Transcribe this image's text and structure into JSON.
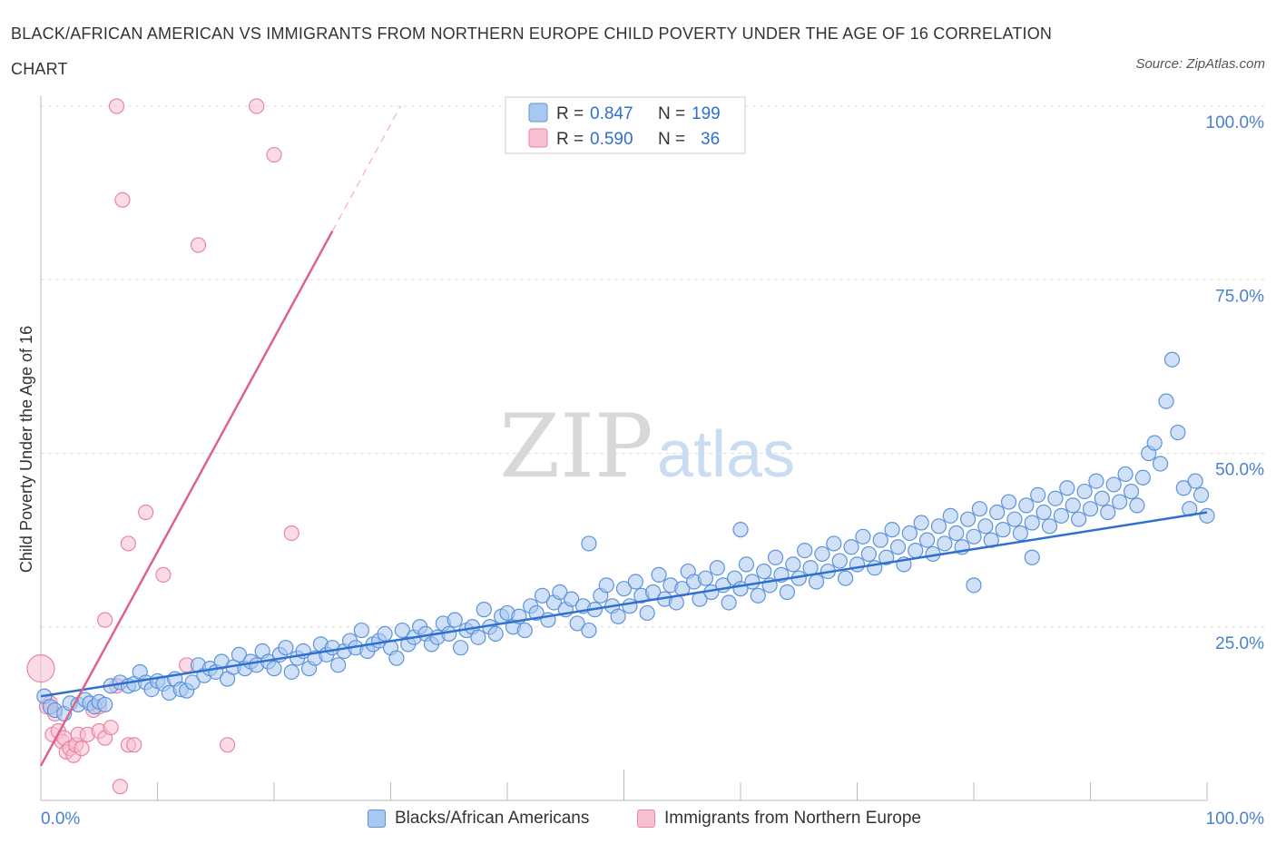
{
  "header": {
    "title": "BLACK/AFRICAN AMERICAN VS IMMIGRANTS FROM NORTHERN EUROPE CHILD POVERTY UNDER THE AGE OF 16 CORRELATION CHART",
    "source": "Source: ZipAtlas.com"
  },
  "colors": {
    "blue_fill": "#a9c8f0",
    "blue_stroke": "#5d93dc",
    "blue_line": "#2f6fd0",
    "pink_fill": "#f8c0d1",
    "pink_stroke": "#e8869f",
    "pink_line": "#e0628c",
    "tick_label": "#4a7fd0",
    "grid": "#dddddd"
  },
  "legend_box": {
    "row1": {
      "r_label": "R =",
      "r_value": "0.847",
      "n_label": "N =",
      "n_value": "199"
    },
    "row2": {
      "r_label": "R =",
      "r_value": "0.590",
      "n_label": "N =",
      "n_value": "36"
    }
  },
  "watermark": {
    "zip": "ZIP",
    "atlas": "atlas"
  },
  "chart_data": {
    "type": "scatter",
    "title": "BLACK/AFRICAN AMERICAN VS IMMIGRANTS FROM NORTHERN EUROPE CHILD POVERTY UNDER THE AGE OF 16 CORRELATION CHART",
    "xlabel": "",
    "ylabel": "Child Poverty Under the Age of 16",
    "xlim": [
      0,
      100
    ],
    "ylim": [
      0,
      100
    ],
    "x_tick_labels": [
      "0.0%",
      "100.0%"
    ],
    "y_tick_labels": [
      "25.0%",
      "50.0%",
      "75.0%",
      "100.0%"
    ],
    "y_ticks": [
      25,
      50,
      75,
      100
    ],
    "grid": true,
    "legend_position": "bottom",
    "series": [
      {
        "name": "Blacks/African Americans",
        "color": "#5d93dc",
        "R": 0.847,
        "N": 199,
        "trend": {
          "x": [
            0,
            100
          ],
          "y": [
            15.0,
            41.5
          ]
        },
        "points": [
          [
            0.3,
            15.0
          ],
          [
            0.8,
            13.5
          ],
          [
            1.2,
            13.0
          ],
          [
            2.0,
            12.5
          ],
          [
            2.5,
            14.0
          ],
          [
            3.2,
            13.8
          ],
          [
            3.8,
            14.5
          ],
          [
            4.2,
            14.0
          ],
          [
            4.6,
            13.5
          ],
          [
            5.0,
            14.2
          ],
          [
            5.5,
            13.8
          ],
          [
            6.0,
            16.5
          ],
          [
            6.8,
            17.0
          ],
          [
            7.5,
            16.5
          ],
          [
            8.0,
            16.8
          ],
          [
            8.5,
            18.5
          ],
          [
            9.0,
            17.0
          ],
          [
            9.5,
            16.0
          ],
          [
            10.0,
            17.2
          ],
          [
            10.5,
            16.8
          ],
          [
            11.0,
            15.5
          ],
          [
            11.5,
            17.5
          ],
          [
            12.0,
            16.0
          ],
          [
            12.5,
            15.8
          ],
          [
            13.0,
            17.0
          ],
          [
            13.5,
            19.5
          ],
          [
            14.0,
            18.0
          ],
          [
            14.5,
            19.0
          ],
          [
            15.0,
            18.5
          ],
          [
            15.5,
            20.0
          ],
          [
            16.0,
            17.5
          ],
          [
            16.5,
            19.2
          ],
          [
            17.0,
            21.0
          ],
          [
            17.5,
            19.0
          ],
          [
            18.0,
            20.0
          ],
          [
            18.5,
            19.5
          ],
          [
            19.0,
            21.5
          ],
          [
            19.5,
            20.0
          ],
          [
            20.0,
            19.0
          ],
          [
            20.5,
            21.0
          ],
          [
            21.0,
            22.0
          ],
          [
            21.5,
            18.5
          ],
          [
            22.0,
            20.5
          ],
          [
            22.5,
            21.5
          ],
          [
            23.0,
            19.0
          ],
          [
            23.5,
            20.5
          ],
          [
            24.0,
            22.5
          ],
          [
            24.5,
            21.0
          ],
          [
            25.0,
            22.0
          ],
          [
            25.5,
            19.5
          ],
          [
            26.0,
            21.5
          ],
          [
            26.5,
            23.0
          ],
          [
            27.0,
            22.0
          ],
          [
            27.5,
            24.5
          ],
          [
            28.0,
            21.5
          ],
          [
            28.5,
            22.5
          ],
          [
            29.0,
            23.0
          ],
          [
            29.5,
            24.0
          ],
          [
            30.0,
            22.0
          ],
          [
            30.5,
            20.5
          ],
          [
            31.0,
            24.5
          ],
          [
            31.5,
            22.5
          ],
          [
            32.0,
            23.5
          ],
          [
            32.5,
            25.0
          ],
          [
            33.0,
            24.0
          ],
          [
            33.5,
            22.5
          ],
          [
            34.0,
            23.5
          ],
          [
            34.5,
            25.5
          ],
          [
            35.0,
            24.0
          ],
          [
            35.5,
            26.0
          ],
          [
            36.0,
            22.0
          ],
          [
            36.5,
            24.5
          ],
          [
            37.0,
            25.0
          ],
          [
            37.5,
            23.5
          ],
          [
            38.0,
            27.5
          ],
          [
            38.5,
            25.0
          ],
          [
            39.0,
            24.0
          ],
          [
            39.5,
            26.5
          ],
          [
            40.0,
            27.0
          ],
          [
            40.5,
            25.0
          ],
          [
            41.0,
            26.5
          ],
          [
            41.5,
            24.5
          ],
          [
            42.0,
            28.0
          ],
          [
            42.5,
            27.0
          ],
          [
            43.0,
            29.5
          ],
          [
            43.5,
            26.0
          ],
          [
            44.0,
            28.5
          ],
          [
            44.5,
            30.0
          ],
          [
            45.0,
            27.5
          ],
          [
            45.5,
            29.0
          ],
          [
            46.0,
            25.5
          ],
          [
            46.5,
            28.0
          ],
          [
            47.0,
            24.5
          ],
          [
            47.5,
            27.5
          ],
          [
            48.0,
            29.5
          ],
          [
            48.5,
            31.0
          ],
          [
            49.0,
            28.0
          ],
          [
            49.5,
            26.5
          ],
          [
            50.0,
            30.5
          ],
          [
            50.5,
            28.0
          ],
          [
            51.0,
            31.5
          ],
          [
            51.5,
            29.5
          ],
          [
            52.0,
            27.0
          ],
          [
            52.5,
            30.0
          ],
          [
            53.0,
            32.5
          ],
          [
            53.5,
            29.0
          ],
          [
            54.0,
            31.0
          ],
          [
            54.5,
            28.5
          ],
          [
            55.0,
            30.5
          ],
          [
            55.5,
            33.0
          ],
          [
            56.0,
            31.5
          ],
          [
            56.5,
            29.0
          ],
          [
            57.0,
            32.0
          ],
          [
            57.5,
            30.0
          ],
          [
            58.0,
            33.5
          ],
          [
            58.5,
            31.0
          ],
          [
            59.0,
            28.5
          ],
          [
            59.5,
            32.0
          ],
          [
            60.0,
            30.5
          ],
          [
            60.5,
            34.0
          ],
          [
            61.0,
            31.5
          ],
          [
            61.5,
            29.5
          ],
          [
            62.0,
            33.0
          ],
          [
            62.5,
            31.0
          ],
          [
            63.0,
            35.0
          ],
          [
            63.5,
            32.5
          ],
          [
            64.0,
            30.0
          ],
          [
            64.5,
            34.0
          ],
          [
            65.0,
            32.0
          ],
          [
            65.5,
            36.0
          ],
          [
            66.0,
            33.5
          ],
          [
            66.5,
            31.5
          ],
          [
            67.0,
            35.5
          ],
          [
            67.5,
            33.0
          ],
          [
            68.0,
            37.0
          ],
          [
            68.5,
            34.5
          ],
          [
            69.0,
            32.0
          ],
          [
            69.5,
            36.5
          ],
          [
            70.0,
            34.0
          ],
          [
            70.5,
            38.0
          ],
          [
            71.0,
            35.5
          ],
          [
            71.5,
            33.5
          ],
          [
            72.0,
            37.5
          ],
          [
            72.5,
            35.0
          ],
          [
            73.0,
            39.0
          ],
          [
            73.5,
            36.5
          ],
          [
            74.0,
            34.0
          ],
          [
            74.5,
            38.5
          ],
          [
            75.0,
            36.0
          ],
          [
            75.5,
            40.0
          ],
          [
            76.0,
            37.5
          ],
          [
            76.5,
            35.5
          ],
          [
            77.0,
            39.5
          ],
          [
            77.5,
            37.0
          ],
          [
            78.0,
            41.0
          ],
          [
            78.5,
            38.5
          ],
          [
            79.0,
            36.5
          ],
          [
            79.5,
            40.5
          ],
          [
            80.0,
            38.0
          ],
          [
            80.5,
            42.0
          ],
          [
            81.0,
            39.5
          ],
          [
            81.5,
            37.5
          ],
          [
            82.0,
            41.5
          ],
          [
            82.5,
            39.0
          ],
          [
            83.0,
            43.0
          ],
          [
            83.5,
            40.5
          ],
          [
            84.0,
            38.5
          ],
          [
            84.5,
            42.5
          ],
          [
            85.0,
            40.0
          ],
          [
            85.5,
            44.0
          ],
          [
            86.0,
            41.5
          ],
          [
            86.5,
            39.5
          ],
          [
            87.0,
            43.5
          ],
          [
            87.5,
            41.0
          ],
          [
            88.0,
            45.0
          ],
          [
            88.5,
            42.5
          ],
          [
            89.0,
            40.5
          ],
          [
            89.5,
            44.5
          ],
          [
            90.0,
            42.0
          ],
          [
            90.5,
            46.0
          ],
          [
            91.0,
            43.5
          ],
          [
            91.5,
            41.5
          ],
          [
            92.0,
            45.5
          ],
          [
            92.5,
            43.0
          ],
          [
            93.0,
            47.0
          ],
          [
            93.5,
            44.5
          ],
          [
            94.0,
            42.5
          ],
          [
            94.5,
            46.5
          ],
          [
            95.0,
            50.0
          ],
          [
            95.5,
            51.5
          ],
          [
            96.0,
            48.5
          ],
          [
            96.5,
            57.5
          ],
          [
            97.0,
            63.5
          ],
          [
            97.5,
            53.0
          ],
          [
            98.0,
            45.0
          ],
          [
            98.5,
            42.0
          ],
          [
            99.0,
            46.0
          ],
          [
            99.5,
            44.0
          ],
          [
            100.0,
            41.0
          ],
          [
            60.0,
            39.0
          ],
          [
            47.0,
            37.0
          ],
          [
            80.0,
            31.0
          ],
          [
            85.0,
            35.0
          ]
        ]
      },
      {
        "name": "Immigrants from Northern Europe",
        "color": "#e8869f",
        "R": 0.59,
        "N": 36,
        "trend": {
          "x": [
            0,
            25.0
          ],
          "y": [
            5.0,
            82.0
          ]
        },
        "points": [
          [
            0.0,
            19.0
          ],
          [
            0.5,
            13.5
          ],
          [
            0.8,
            14.0
          ],
          [
            1.0,
            9.5
          ],
          [
            1.2,
            12.5
          ],
          [
            1.5,
            10.0
          ],
          [
            1.8,
            8.5
          ],
          [
            2.0,
            9.0
          ],
          [
            2.2,
            7.0
          ],
          [
            2.5,
            7.5
          ],
          [
            2.8,
            6.5
          ],
          [
            3.0,
            8.0
          ],
          [
            3.2,
            9.5
          ],
          [
            3.5,
            7.5
          ],
          [
            4.0,
            9.5
          ],
          [
            4.5,
            13.0
          ],
          [
            5.0,
            10.0
          ],
          [
            5.5,
            9.0
          ],
          [
            6.0,
            10.5
          ],
          [
            6.5,
            16.5
          ],
          [
            6.8,
            2.0
          ],
          [
            7.5,
            8.0
          ],
          [
            8.0,
            8.0
          ],
          [
            9.0,
            41.5
          ],
          [
            10.5,
            32.5
          ],
          [
            6.5,
            100.0
          ],
          [
            7.0,
            86.5
          ],
          [
            13.5,
            80.0
          ],
          [
            16.0,
            8.0
          ],
          [
            18.5,
            100.0
          ],
          [
            20.0,
            93.0
          ],
          [
            21.5,
            38.5
          ],
          [
            7.5,
            37.0
          ],
          [
            5.5,
            26.0
          ],
          [
            12.5,
            19.5
          ],
          [
            5.0,
            13.5
          ]
        ]
      }
    ]
  },
  "legend_bottom": [
    {
      "label": "Blacks/African Americans"
    },
    {
      "label": "Immigrants from Northern Europe"
    }
  ]
}
